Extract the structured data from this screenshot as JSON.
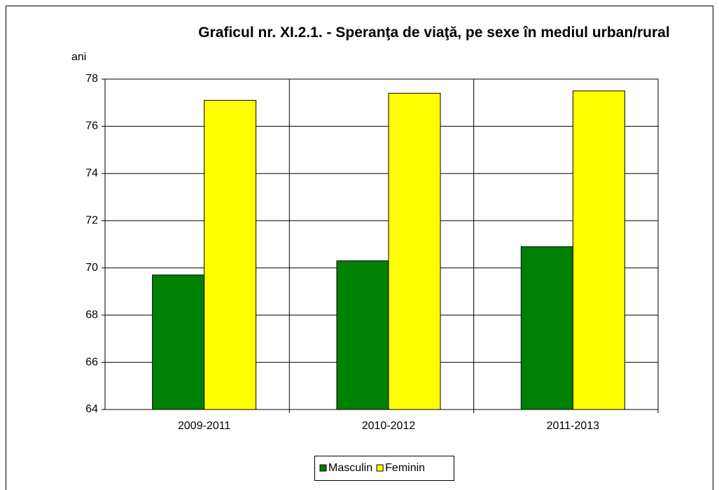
{
  "chart_data": {
    "type": "bar",
    "title": "Graficul nr. XI.2.1. - Speranţa de viaţă, pe sexe în mediul urban/rural",
    "y_label": "ani",
    "categories": [
      "2009-2011",
      "2010-2012",
      "2011-2013"
    ],
    "series": [
      {
        "name": "Masculin",
        "color": "#008000",
        "values": [
          69.7,
          70.3,
          70.9
        ]
      },
      {
        "name": "Feminin",
        "color": "#ffff00",
        "values": [
          77.1,
          77.4,
          77.5
        ]
      }
    ],
    "ylim": [
      64,
      78
    ],
    "yticks": [
      64,
      66,
      68,
      70,
      72,
      74,
      76,
      78
    ],
    "grid": true,
    "legend": "bottom"
  }
}
